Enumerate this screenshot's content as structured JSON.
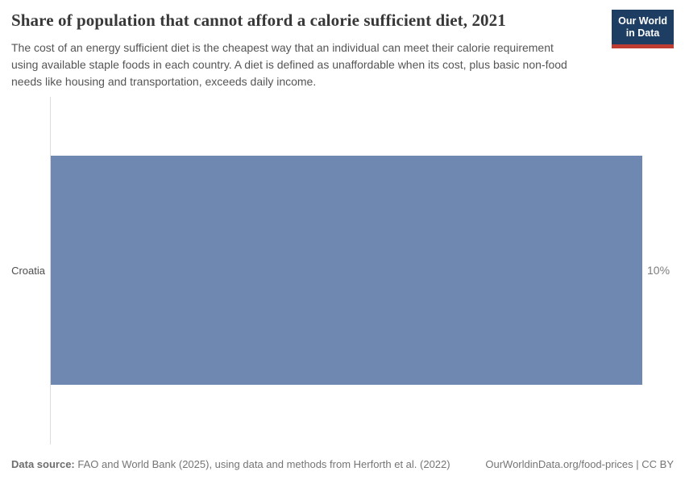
{
  "header": {
    "title": "Share of population that cannot afford a calorie sufficient diet, 2021",
    "subtitle": "The cost of an energy sufficient diet is the cheapest way that an individual can meet their calorie requirement using available staple foods in each country. A diet is defined as unaffordable when its cost, plus basic non-food needs like housing and transportation, exceeds daily income.",
    "logo": {
      "line1": "Our World",
      "line2": "in Data",
      "bg_color": "#1d3d63",
      "accent_color": "#be3c32"
    }
  },
  "chart_data": {
    "type": "bar",
    "orientation": "horizontal",
    "title": "Share of population that cannot afford a calorie sufficient diet, 2021",
    "categories": [
      "Croatia"
    ],
    "values": [
      10
    ],
    "value_labels": [
      "10%"
    ],
    "unit": "%",
    "xlim": [
      0,
      10
    ],
    "bar_color": "#6f88b1",
    "grid": false,
    "legend": false
  },
  "footer": {
    "datasource_label": "Data source:",
    "datasource_text": "FAO and World Bank (2025), using data and methods from Herforth et al. (2022)",
    "link_text": "OurWorldinData.org/food-prices | CC BY"
  }
}
